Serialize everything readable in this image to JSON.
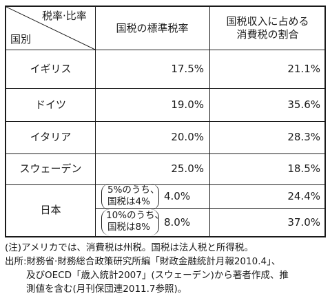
{
  "header": {
    "corner_top": "税率·比率",
    "corner_bottom": "国別",
    "col1": "国税の標準税率",
    "col2_line1": "国税収入に占める",
    "col2_line2": "消費税の割合"
  },
  "rows": [
    {
      "country": "イギリス",
      "rate": "17.5%",
      "share": "21.1%"
    },
    {
      "country": "ドイツ",
      "rate": "19.0%",
      "share": "35.6%"
    },
    {
      "country": "イタリア",
      "rate": "20.0%",
      "share": "28.3%"
    },
    {
      "country": "スウェーデン",
      "rate": "25.0%",
      "share": "18.5%"
    }
  ],
  "japan": {
    "country": "日本",
    "sub": [
      {
        "note_line1": "5%のうち、",
        "note_line2": "国税は4%",
        "rate": "4.0%",
        "share": "24.4%"
      },
      {
        "note_line1": "10%のうち、",
        "note_line2": "国税は8%",
        "rate": "8.0%",
        "share": "37.0%"
      }
    ]
  },
  "notes": {
    "line1": "(注)アメリカでは、消費税は州税。国税は法人税と所得税。",
    "line2": "出所:財務省·財務総合政策研究所編「財政金融統計月報2010.4」、",
    "line3": "及びOECD「歳入統計2007」(スウェーデン)から著者作成、推",
    "line4": "測値を含む(月刊保団連2011.7参照)。"
  }
}
